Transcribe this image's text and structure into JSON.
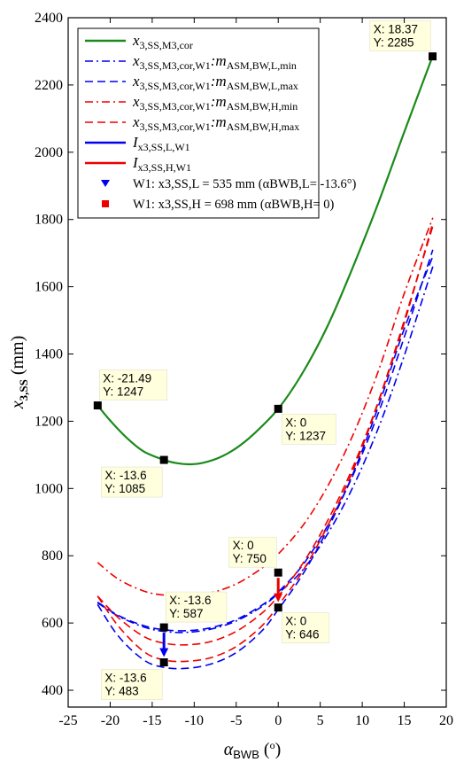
{
  "chart_data": {
    "type": "line",
    "xlabel": {
      "main": "α",
      "sub": "BWB",
      "unit": " (",
      "deg": "o",
      "close": ")"
    },
    "ylabel": {
      "main": "x",
      "sub": "3,SS",
      "unit": " (mm)"
    },
    "xlim": [
      -25,
      20
    ],
    "ylim": [
      350,
      2400
    ],
    "xticks": [
      -25,
      -20,
      -15,
      -10,
      -5,
      0,
      5,
      10,
      15,
      20
    ],
    "yticks": [
      400,
      600,
      800,
      1000,
      1200,
      1400,
      1600,
      1800,
      2000,
      2200,
      2400
    ],
    "grid": false,
    "legend_position": "top-left",
    "colors": {
      "green": "#1a8a1a",
      "blue": "#0000ee",
      "red": "#ee0000"
    },
    "series": [
      {
        "name": "x3,SS,M3,cor",
        "color": "#1a8a1a",
        "dash": "solid",
        "x": [
          -21.49,
          -20,
          -18,
          -16,
          -13.6,
          -12,
          -10.5,
          -9,
          -7,
          -5,
          -3,
          0,
          3,
          6,
          9,
          12,
          15,
          18.37
        ],
        "y": [
          1247,
          1202,
          1150,
          1110,
          1085,
          1075,
          1072,
          1076,
          1092,
          1120,
          1160,
          1237,
          1348,
          1490,
          1665,
          1855,
          2060,
          2285
        ]
      },
      {
        "name": "x3,SS,M3,cor,W1:mASM,BW,L,min",
        "color": "#0000ee",
        "dash": "dashdot",
        "x": [
          -21.5,
          -19,
          -16,
          -13.6,
          -11,
          -8,
          -5,
          -2,
          0,
          3,
          6,
          9,
          12,
          15,
          18.4
        ],
        "y": [
          660,
          620,
          588,
          575,
          572,
          582,
          606,
          648,
          688,
          760,
          870,
          1010,
          1185,
          1395,
          1660
        ]
      },
      {
        "name": "x3,SS,M3,cor,W1:mASM,BW,L,max",
        "color": "#0000ee",
        "dash": "dashed",
        "x": [
          -21.5,
          -19,
          -16,
          -13.6,
          -11,
          -8,
          -5,
          -2,
          0,
          3,
          6,
          9,
          12,
          15,
          18.4
        ],
        "y": [
          662,
          622,
          592,
          580,
          577,
          586,
          610,
          652,
          692,
          775,
          895,
          1045,
          1230,
          1450,
          1710
        ]
      },
      {
        "name": "x3,SS,M3,cor,W1:mASM,BW,H,min",
        "color": "#ee0000",
        "dash": "dashdot",
        "x": [
          -21.5,
          -19,
          -16,
          -13.6,
          -11,
          -8,
          -5,
          -2,
          0,
          3,
          6,
          9,
          12,
          15,
          18.4
        ],
        "y": [
          780,
          730,
          695,
          683,
          680,
          690,
          716,
          762,
          805,
          892,
          1012,
          1165,
          1355,
          1580,
          1805
        ]
      },
      {
        "name": "x3,SS,M3,cor,W1:mASM,BW,H,max",
        "color": "#ee0000",
        "dash": "dashed",
        "x": [
          -21.5,
          -19,
          -16,
          -13.6,
          -11,
          -8,
          -5,
          -2,
          0,
          3,
          6,
          9,
          12,
          15,
          18.4
        ],
        "y": [
          680,
          615,
          560,
          540,
          535,
          545,
          575,
          628,
          680,
          780,
          910,
          1070,
          1265,
          1500,
          1780
        ]
      }
    ],
    "inset_curves": [
      {
        "name": "lower blue dashed",
        "color": "#0000ee",
        "dash": "dashed",
        "x": [
          -21.5,
          -19,
          -16,
          -13.6,
          -11,
          -8,
          -5,
          -2,
          0,
          3,
          6,
          9,
          12,
          15,
          18.4
        ],
        "y": [
          655,
          560,
          490,
          468,
          465,
          478,
          512,
          575,
          640,
          748,
          885,
          1050,
          1250,
          1475,
          1690
        ]
      },
      {
        "name": "lower red dashed",
        "color": "#ee0000",
        "dash": "dashed",
        "x": [
          -21.5,
          -19,
          -16,
          -13.6,
          -11,
          -8,
          -5,
          -2,
          0,
          3,
          6,
          9,
          12,
          15,
          18.4
        ],
        "y": [
          680,
          590,
          515,
          490,
          486,
          497,
          530,
          590,
          652,
          758,
          895,
          1060,
          1262,
          1492,
          1790
        ]
      }
    ],
    "arrows": [
      {
        "name": "Ix3,SS,L,W1",
        "color": "#0000ee",
        "x": -13.6,
        "from": 587,
        "to": 483
      },
      {
        "name": "Ix3,SS,H,W1",
        "color": "#ee0000",
        "x": 0,
        "from": 750,
        "to": 646
      }
    ],
    "annotations": [
      {
        "x": -21.49,
        "y": 1247,
        "xt": "X: -21.49",
        "yt": "Y: 1247",
        "side": "above-right"
      },
      {
        "x": -13.6,
        "y": 1085,
        "xt": "X: -13.6",
        "yt": "Y: 1085",
        "side": "below-left"
      },
      {
        "x": 0,
        "y": 1237,
        "xt": "X: 0",
        "yt": "Y: 1237",
        "side": "below-right"
      },
      {
        "x": 18.37,
        "y": 2285,
        "xt": "X: 18.37",
        "yt": "Y: 2285",
        "side": "above-left"
      },
      {
        "x": 0,
        "y": 750,
        "xt": "X: 0",
        "yt": "Y: 750",
        "side": "above-left"
      },
      {
        "x": -13.6,
        "y": 587,
        "xt": "X: -13.6",
        "yt": "Y: 587",
        "side": "above-right"
      },
      {
        "x": 0,
        "y": 646,
        "xt": "X: 0",
        "yt": "Y: 646",
        "side": "below-right"
      },
      {
        "x": -13.6,
        "y": 483,
        "xt": "X: -13.6",
        "yt": "Y: 483",
        "side": "below-left"
      }
    ],
    "legend": [
      {
        "kind": "line",
        "color": "#1a8a1a",
        "dash": "solid",
        "base": "x",
        "sub": "3,SS,M3,cor",
        "rest": "",
        "restsub": ""
      },
      {
        "kind": "line",
        "color": "#0000ee",
        "dash": "dashdot",
        "base": "x",
        "sub": "3,SS,M3,cor,W1",
        "rest": ":m",
        "restsub": "ASM,BW,L,min"
      },
      {
        "kind": "line",
        "color": "#0000ee",
        "dash": "dashed",
        "base": "x",
        "sub": "3,SS,M3,cor,W1",
        "rest": ":m",
        "restsub": "ASM,BW,L,max"
      },
      {
        "kind": "line",
        "color": "#ee0000",
        "dash": "dashdot",
        "base": "x",
        "sub": "3,SS,M3,cor,W1",
        "rest": ":m",
        "restsub": "ASM,BW,H,min"
      },
      {
        "kind": "line",
        "color": "#ee0000",
        "dash": "dashed",
        "base": "x",
        "sub": "3,SS,M3,cor,W1",
        "rest": ":m",
        "restsub": "ASM,BW,H,max"
      },
      {
        "kind": "line",
        "color": "#0000ee",
        "dash": "solid",
        "base": "I",
        "sub": "x3,SS,L,W1",
        "rest": "",
        "restsub": ""
      },
      {
        "kind": "line",
        "color": "#ee0000",
        "dash": "solid",
        "base": "I",
        "sub": "x3,SS,H,W1",
        "rest": "",
        "restsub": ""
      },
      {
        "kind": "triangle",
        "color": "#0000ee",
        "text": "W1: x3,SS,L = 535 mm (αBWB,L= -13.6°)"
      },
      {
        "kind": "square",
        "color": "#ee0000",
        "text": "W1: x3,SS,H = 698 mm (αBWB,H= 0)"
      }
    ]
  }
}
